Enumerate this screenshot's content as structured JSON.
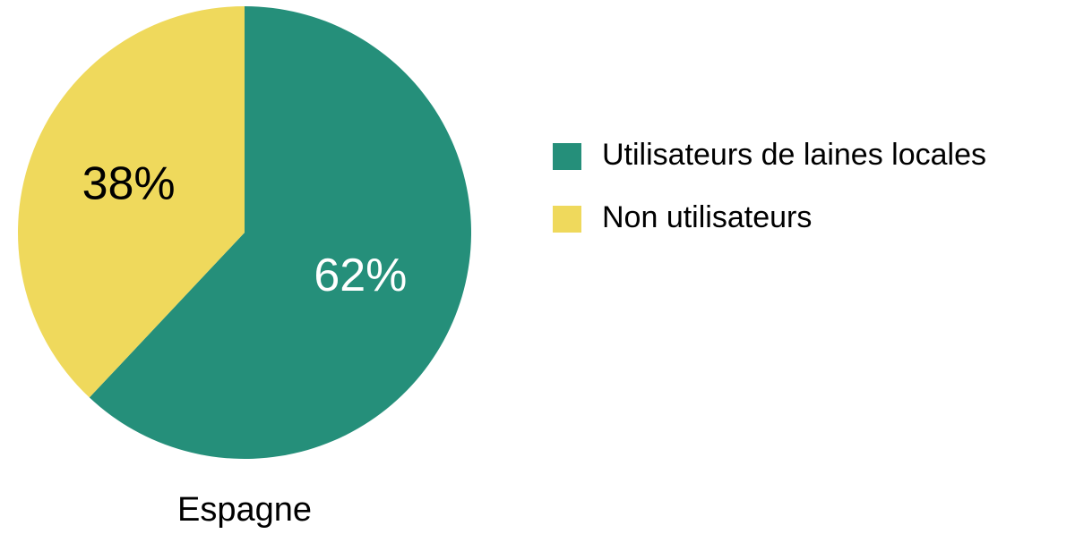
{
  "chart_data": {
    "type": "pie",
    "title": "Espagne",
    "categories": [
      "Utilisateurs de laines locales",
      "Non utilisateurs"
    ],
    "values": [
      62,
      38
    ],
    "value_labels": [
      "62%",
      "38%"
    ],
    "colors": [
      "#258f7a",
      "#efd95c"
    ],
    "legend": "right"
  }
}
